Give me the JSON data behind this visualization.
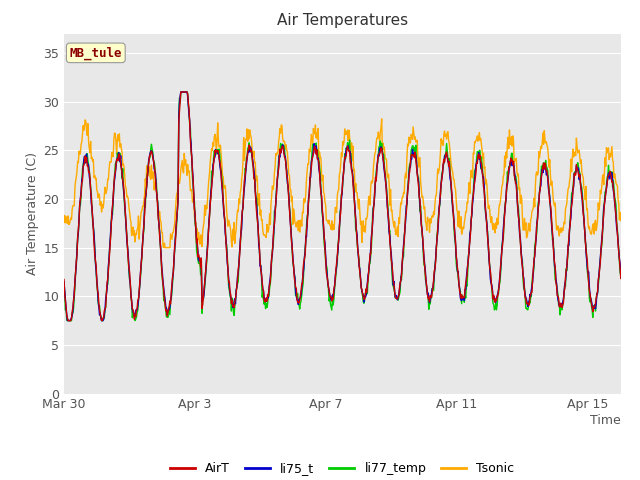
{
  "title": "Air Temperatures",
  "xlabel": "Time",
  "ylabel": "Air Temperature (C)",
  "annotation": "MB_tule",
  "ylim": [
    0,
    37
  ],
  "yticks": [
    0,
    5,
    10,
    15,
    20,
    25,
    30,
    35
  ],
  "x_tick_labels": [
    "Mar 30",
    "Apr 3",
    "Apr 7",
    "Apr 11",
    "Apr 15"
  ],
  "x_tick_positions": [
    0,
    4,
    8,
    12,
    16
  ],
  "n_days": 17,
  "line_colors": {
    "AirT": "#cc0000",
    "li75_t": "#0000cc",
    "li77_temp": "#00cc00",
    "Tsonic": "#ffaa00"
  },
  "plot_bg_color": "#e8e8e8",
  "title_fontsize": 11,
  "axis_label_fontsize": 9,
  "tick_fontsize": 9,
  "legend_fontsize": 9,
  "annotation_fontsize": 9
}
